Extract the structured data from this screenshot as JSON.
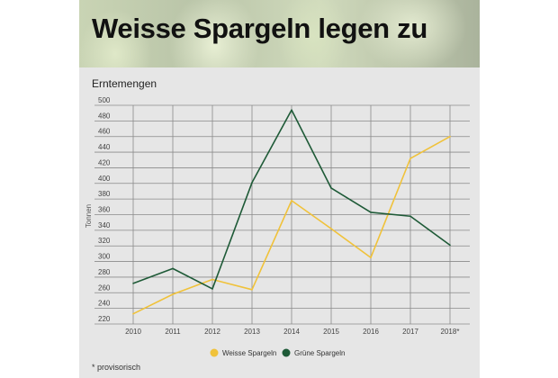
{
  "chart_data": {
    "type": "line",
    "title": "Weisse Spargeln legen zu",
    "subtitle": "Erntemengen",
    "xlabel": "",
    "ylabel": "Tonnen",
    "categories": [
      "2010",
      "2011",
      "2012",
      "2013",
      "2014",
      "2015",
      "2016",
      "2017",
      "2018*"
    ],
    "yticks": [
      220,
      240,
      260,
      280,
      300,
      320,
      340,
      360,
      380,
      400,
      420,
      440,
      460,
      480,
      500
    ],
    "ylim": [
      220,
      500
    ],
    "grid": true,
    "legend_position": "bottom",
    "series": [
      {
        "name": "Weisse Spargeln",
        "color": "#f0c23a",
        "values": [
          233,
          258,
          277,
          264,
          378,
          342,
          305,
          432,
          460
        ]
      },
      {
        "name": "Grüne Spargeln",
        "color": "#1e5a37",
        "values": [
          272,
          291,
          265,
          401,
          494,
          394,
          363,
          358,
          321
        ]
      }
    ],
    "footnote": "* provisorisch"
  }
}
